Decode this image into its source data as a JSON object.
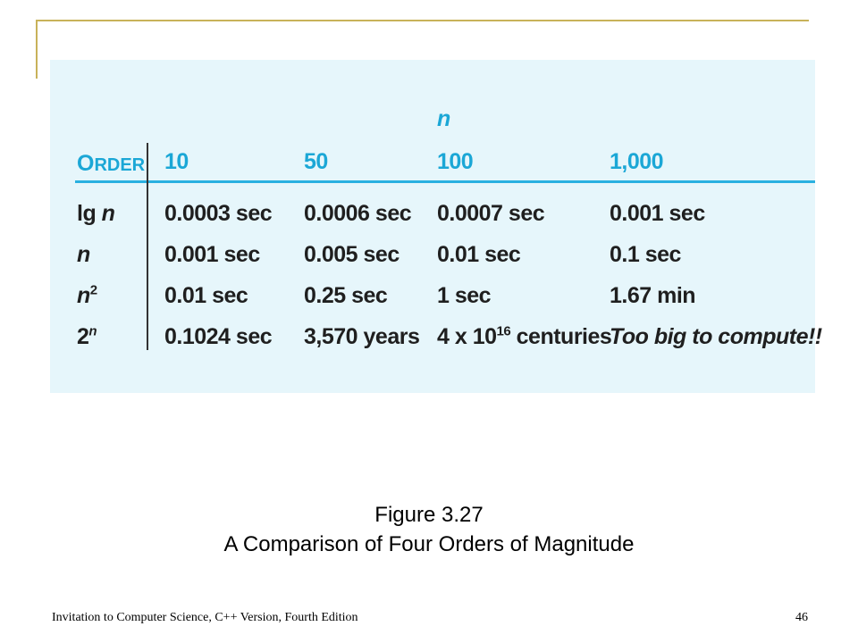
{
  "table": {
    "n_label": "n",
    "order_label_first": "O",
    "order_label_rest": "RDER",
    "columns": [
      "10",
      "50",
      "100",
      "1,000"
    ],
    "rows": [
      {
        "label_base": "lg ",
        "label_var": "n",
        "label_sup": "",
        "cells": [
          "0.0003 sec",
          "0.0006 sec",
          "0.0007 sec",
          "0.001 sec"
        ]
      },
      {
        "label_base": "",
        "label_var": "n",
        "label_sup": "",
        "cells": [
          "0.001 sec",
          "0.005 sec",
          "0.01 sec",
          "0.1 sec"
        ]
      },
      {
        "label_base": "",
        "label_var": "n",
        "label_sup": "2",
        "cells": [
          "0.01 sec",
          "0.25 sec",
          "1 sec",
          "1.67 min"
        ]
      },
      {
        "label_base": "2",
        "label_var": "",
        "label_sup": "n",
        "cells": [
          "0.1024 sec",
          "3,570 years",
          "",
          "Too big to compute!!"
        ]
      }
    ],
    "special_cell": {
      "prefix": "4 x 10",
      "sup": "16",
      "suffix": " centuries"
    }
  },
  "caption": {
    "figure_number": "Figure 3.27",
    "title": "A Comparison of Four Orders of Magnitude"
  },
  "footer": {
    "book_title": "Invitation to Computer Science, C++ Version, Fourth Edition",
    "page_number": "46"
  },
  "colors": {
    "panel_bg": "#e6f6fb",
    "accent_blue": "#1ba7d6",
    "frame_gold": "#c8b25a"
  }
}
